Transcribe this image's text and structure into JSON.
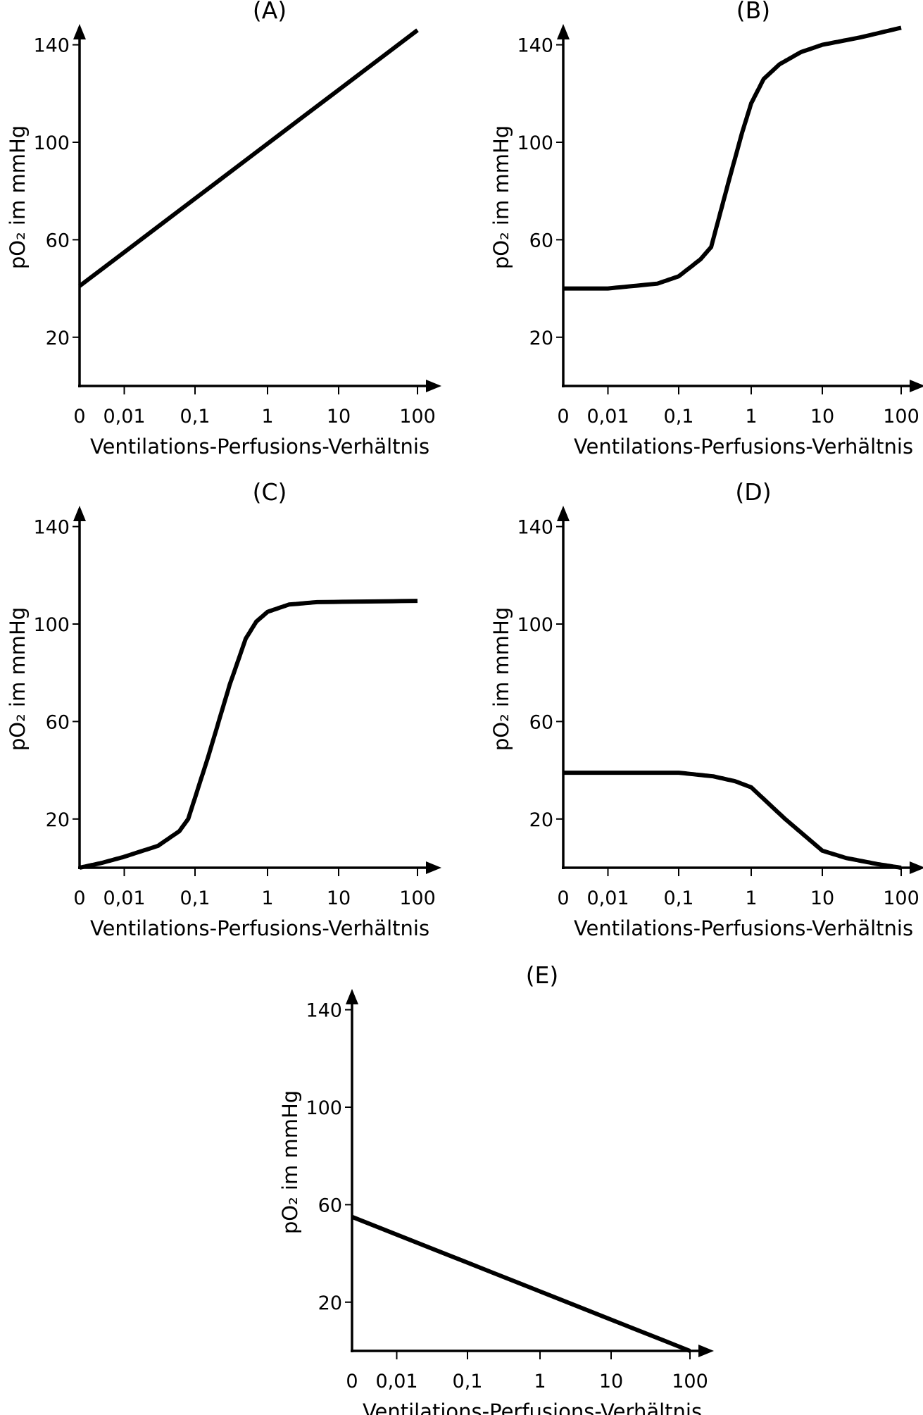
{
  "chart_data": [
    {
      "type": "line",
      "title": "(A)",
      "xlabel": "Ventilations-Perfusions-Verhältnis",
      "ylabel": "pO₂ im mmHg",
      "xticks": [
        "0",
        "0,01",
        "0,1",
        "1",
        "10",
        "100"
      ],
      "x_scale": "log (with 0 at origin)",
      "yticks": [
        20,
        60,
        100,
        140
      ],
      "ylim": [
        0,
        150
      ],
      "grid": false,
      "color": "#000000",
      "points": [
        [
          0,
          41
        ],
        [
          100,
          146
        ]
      ]
    },
    {
      "type": "line",
      "title": "(B)",
      "xlabel": "Ventilations-Perfusions-Verhältnis",
      "ylabel": "pO₂ im mmHg",
      "xticks": [
        "0",
        "0,01",
        "0,1",
        "1",
        "10",
        "100"
      ],
      "x_scale": "log (with 0 at origin)",
      "yticks": [
        20,
        60,
        100,
        140
      ],
      "ylim": [
        0,
        150
      ],
      "grid": false,
      "color": "#000000",
      "points": [
        [
          0,
          40
        ],
        [
          0.01,
          40
        ],
        [
          0.05,
          42
        ],
        [
          0.1,
          45
        ],
        [
          0.2,
          52
        ],
        [
          0.28,
          57
        ],
        [
          0.5,
          85
        ],
        [
          0.75,
          104
        ],
        [
          1,
          116
        ],
        [
          1.5,
          126
        ],
        [
          2.5,
          132
        ],
        [
          5,
          137
        ],
        [
          10,
          140
        ],
        [
          30,
          143
        ],
        [
          100,
          147
        ]
      ]
    },
    {
      "type": "line",
      "title": "(C)",
      "xlabel": "Ventilations-Perfusions-Verhältnis",
      "ylabel": "pO₂ im mmHg",
      "xticks": [
        "0",
        "0,01",
        "0,1",
        "1",
        "10",
        "100"
      ],
      "x_scale": "log (with 0 at origin)",
      "yticks": [
        20,
        60,
        100,
        140
      ],
      "ylim": [
        0,
        150
      ],
      "grid": false,
      "color": "#000000",
      "points": [
        [
          0,
          0
        ],
        [
          0.005,
          2
        ],
        [
          0.01,
          4.5
        ],
        [
          0.03,
          9
        ],
        [
          0.06,
          15
        ],
        [
          0.08,
          20
        ],
        [
          0.15,
          45
        ],
        [
          0.3,
          75
        ],
        [
          0.5,
          94
        ],
        [
          0.7,
          101
        ],
        [
          1,
          105
        ],
        [
          2,
          108
        ],
        [
          5,
          109
        ],
        [
          100,
          109.5
        ]
      ]
    },
    {
      "type": "line",
      "title": "(D)",
      "xlabel": "Ventilations-Perfusions-Verhältnis",
      "ylabel": "pO₂ im mmHg",
      "xticks": [
        "0",
        "0,01",
        "0,1",
        "1",
        "10",
        "100"
      ],
      "x_scale": "log (with 0 at origin)",
      "yticks": [
        20,
        60,
        100,
        140
      ],
      "ylim": [
        0,
        150
      ],
      "grid": false,
      "color": "#000000",
      "points": [
        [
          0,
          39
        ],
        [
          0.1,
          39
        ],
        [
          0.3,
          37.5
        ],
        [
          0.6,
          35.5
        ],
        [
          1,
          33
        ],
        [
          3,
          20
        ],
        [
          10,
          7
        ],
        [
          20,
          4
        ],
        [
          50,
          1.5
        ],
        [
          100,
          0
        ]
      ]
    },
    {
      "type": "line",
      "title": "(E)",
      "xlabel": "Ventilations-Perfusions-Verhältnis",
      "ylabel": "pO₂ im mmHg",
      "xticks": [
        "0",
        "0,01",
        "0,1",
        "1",
        "10",
        "100"
      ],
      "x_scale": "log (with 0 at origin)",
      "yticks": [
        20,
        60,
        100,
        140
      ],
      "ylim": [
        0,
        150
      ],
      "grid": false,
      "color": "#000000",
      "points": [
        [
          0,
          55
        ],
        [
          100,
          0
        ]
      ]
    }
  ]
}
